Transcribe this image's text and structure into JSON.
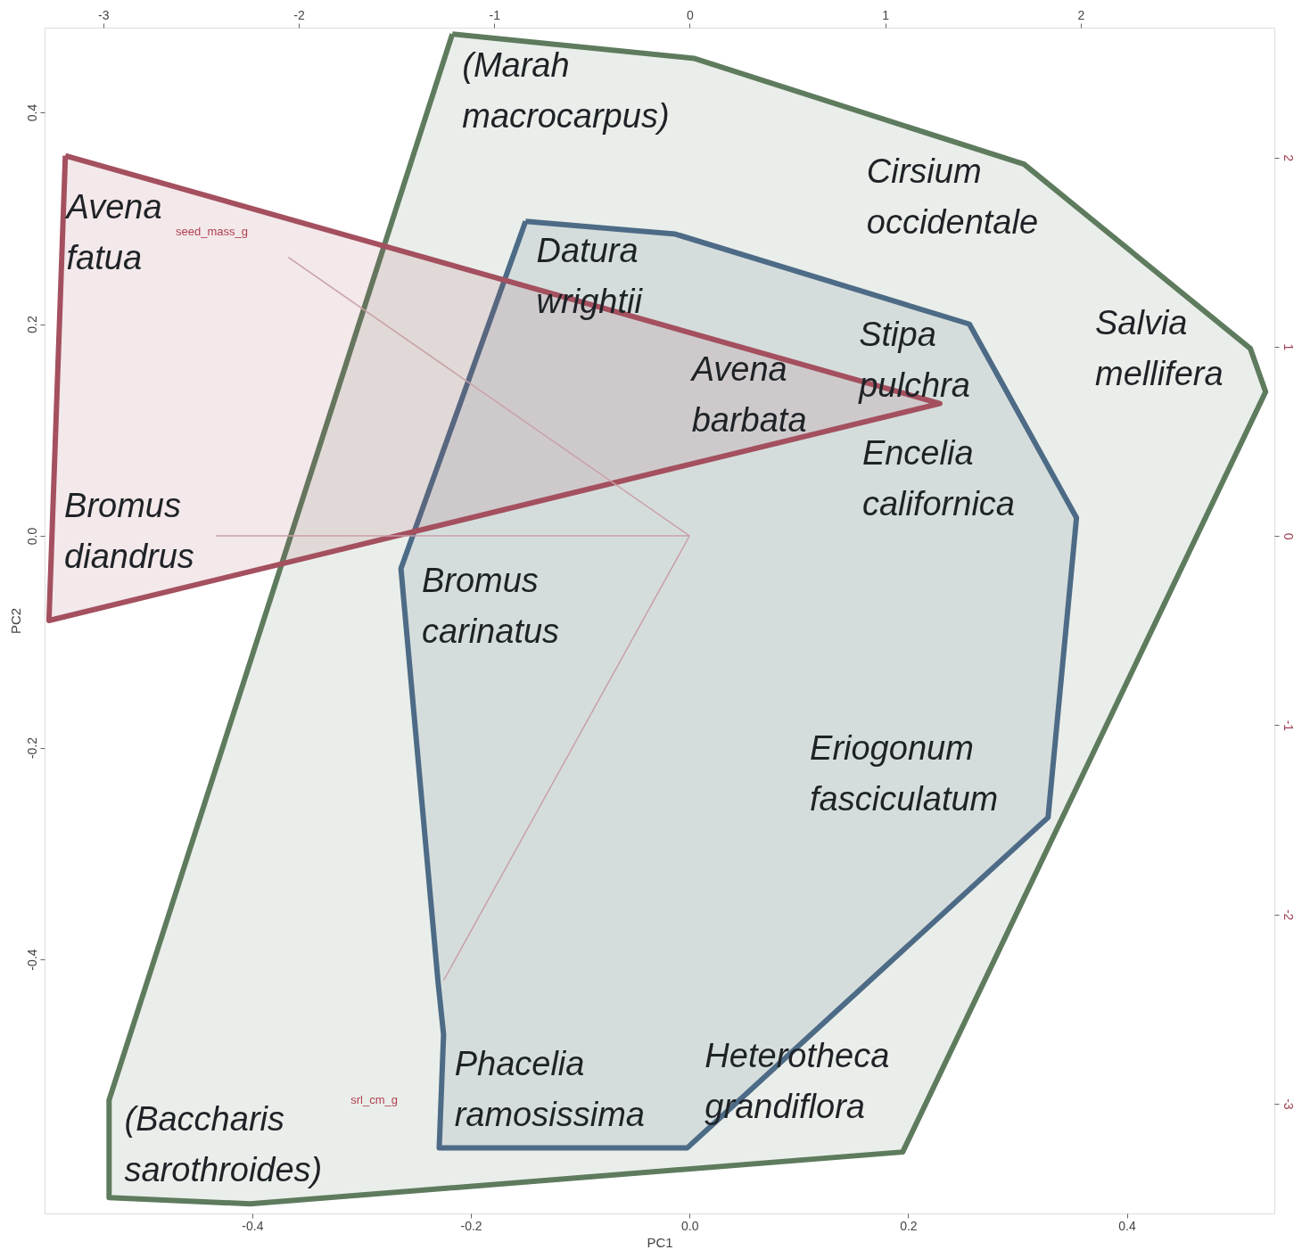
{
  "chart_data": {
    "type": "line",
    "xlabel": "PC1",
    "ylabel": "PC2",
    "xlim": [
      -0.59,
      0.535
    ],
    "ylim": [
      -0.64,
      0.48
    ],
    "xticks": [
      -0.4,
      {
        "value": -0.2,
        "label": "-0.2"
      },
      {
        "value": 0,
        "label": "0.0"
      },
      {
        "value": 0.2,
        "label": "0.2"
      },
      {
        "value": 0.4,
        "label": "0.4"
      }
    ],
    "yticks": [
      {
        "value": -0.4,
        "label": "-0.4"
      },
      {
        "value": -0.2,
        "label": "-0.2"
      },
      {
        "value": 0,
        "label": "0.0"
      },
      {
        "value": 0.2,
        "label": "0.2"
      },
      {
        "value": 0.4,
        "label": "0.4"
      }
    ],
    "x2lim": [
      -3.3,
      2.99
    ],
    "x2ticks": [
      -3,
      -2,
      -1,
      0,
      1,
      2
    ],
    "y2lim": [
      -3.58,
      2.686
    ],
    "y2ticks": [
      -3,
      -2,
      -1,
      0,
      1,
      2
    ],
    "series": [
      {
        "type": "area",
        "color": "#5e7b5e",
        "x": [
          -0.217,
          0.004,
          0.306,
          0.513,
          0.527,
          0.195,
          -0.402,
          -0.531,
          -0.531,
          -0.217
        ],
        "values": [
          0.474,
          0.451,
          0.351,
          0.177,
          0.136,
          -0.582,
          -0.631,
          -0.625,
          -0.533,
          0.474
        ]
      },
      {
        "type": "area",
        "color": "#4d6b86",
        "x": [
          -0.15,
          -0.013,
          0.256,
          0.354,
          0.328,
          -0.002,
          -0.229,
          -0.225,
          -0.23,
          -0.264,
          -0.15
        ],
        "values": [
          0.297,
          0.285,
          0.2,
          0.017,
          -0.266,
          -0.578,
          -0.578,
          -0.471,
          -0.422,
          -0.031,
          0.297
        ]
      },
      {
        "type": "area",
        "color": "#a4505f",
        "x": [
          -0.571,
          0.229,
          -0.586,
          -0.571
        ],
        "values": [
          0.359,
          0.125,
          -0.08,
          0.359
        ]
      },
      {
        "color": "#c9a0a8",
        "x": [
          -0.367,
          0,
          -0.433,
          0,
          -0.225
        ],
        "values": [
          0.263,
          0,
          0,
          0,
          -0.42
        ]
      }
    ],
    "annotations": [
      "(Marah macrocarpus)",
      "Avena fatua",
      "Cirsium occidentale",
      "Datura wrightii",
      "Salvia mellifera",
      "Stipa pulchra",
      "Avena barbata",
      "Encelia californica",
      "Bromus diandrus",
      "Bromus carinatus",
      "Eriogonum fasciculatum",
      "Phacelia ramosissima",
      "Heterotheca grandiflora",
      "(Baccharis sarothroides)",
      "seed_mass_g",
      "srl_cm_g"
    ]
  }
}
